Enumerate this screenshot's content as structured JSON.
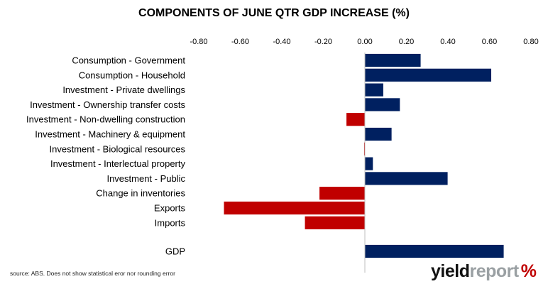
{
  "chart_data": {
    "type": "bar",
    "orientation": "horizontal",
    "title": "COMPONENTS OF JUNE QTR GDP INCREASE (%)",
    "xlim": [
      -0.8,
      0.8
    ],
    "ticks": [
      "-0.80",
      "-0.60",
      "-0.40",
      "-0.20",
      "0.00",
      "0.20",
      "0.40",
      "0.60",
      "0.80"
    ],
    "tick_values": [
      -0.8,
      -0.6,
      -0.4,
      -0.2,
      0.0,
      0.2,
      0.4,
      0.6,
      0.8
    ],
    "axis_position": "top",
    "grid": false,
    "categories": [
      "Consumption - Government",
      "Consumption - Household",
      "Investment - Private dwellings",
      "Investment - Ownership transfer costs",
      "Investment - Non-dwelling construction",
      "Investment - Machinery & equipment",
      "Investment - Biological resources",
      "Investment - Interlectual property",
      "Investment - Public",
      "Change in inventories",
      "Exports",
      "Imports",
      "GDP"
    ],
    "values": [
      0.27,
      0.61,
      0.09,
      0.17,
      -0.09,
      0.13,
      -0.005,
      0.04,
      0.4,
      -0.22,
      -0.68,
      -0.29,
      0.67
    ],
    "colors": {
      "positive": "#002060",
      "negative": "#c00000"
    }
  },
  "source_note": "source: ABS. Does not show statistical eror nor rounding error",
  "logo": {
    "part1": "yield",
    "part2": "report",
    "symbol": "%"
  }
}
